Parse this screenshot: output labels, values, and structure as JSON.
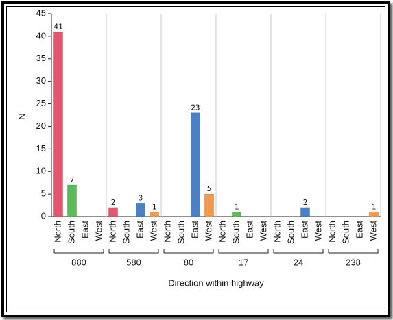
{
  "chart_data": {
    "type": "bar",
    "x_label": "Direction within highway",
    "y_label": "N",
    "categories": [
      "880",
      "580",
      "80",
      "17",
      "24",
      "238"
    ],
    "series": [
      {
        "name": "North",
        "color": "#e5566c",
        "values": [
          41,
          2,
          0,
          0,
          0,
          0
        ]
      },
      {
        "name": "South",
        "color": "#5cbb58",
        "values": [
          7,
          0,
          0,
          1,
          0,
          0
        ]
      },
      {
        "name": "East",
        "color": "#4a80c4",
        "values": [
          0,
          3,
          23,
          0,
          2,
          0
        ]
      },
      {
        "name": "West",
        "color": "#f2994e",
        "values": [
          0,
          1,
          5,
          0,
          0,
          1
        ]
      }
    ],
    "ylim": [
      0,
      45
    ],
    "yticks": [
      0,
      5,
      10,
      15,
      20,
      25,
      30,
      35,
      40,
      45
    ]
  }
}
